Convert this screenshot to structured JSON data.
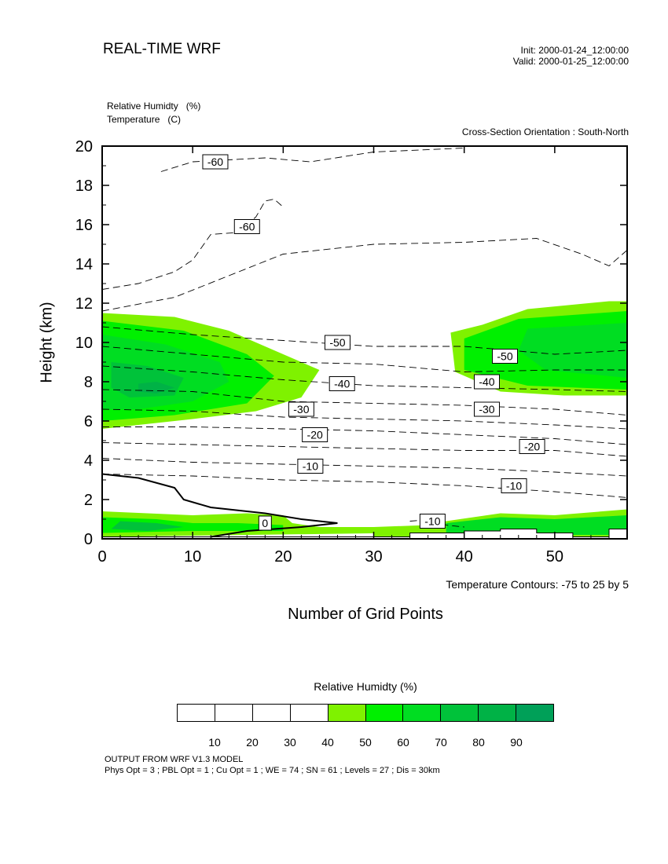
{
  "header": {
    "title": "REAL-TIME WRF",
    "init": "Init: 2000-01-24_12:00:00",
    "valid": "Valid: 2000-01-25_12:00:00"
  },
  "fields": {
    "relative_humidity": "Relative Humidty   (%)",
    "temperature": "Temperature   (C)"
  },
  "orientation": "Cross-Section Orientation : South-North",
  "contour_note": "Temperature Contours: -75 to 25 by 5",
  "colorbar": {
    "title": "Relative Humidty  (%)",
    "labels": [
      "10",
      "20",
      "30",
      "40",
      "50",
      "60",
      "70",
      "80",
      "90"
    ],
    "colors": [
      "#ffffff",
      "#ffffff",
      "#ffffff",
      "#ffffff",
      "#7ff200",
      "#00f000",
      "#00dd22",
      "#00c23a",
      "#00b246",
      "#00a058"
    ]
  },
  "footer": {
    "line1": "OUTPUT FROM WRF V1.3 MODEL",
    "line2": "Phys Opt = 3 ; PBL Opt = 1 ; Cu Opt = 1 ; WE = 74 ; SN = 61 ; Levels = 27 ; Dis = 30km"
  },
  "chart_data": {
    "type": "heatmap",
    "xlabel": "Number of Grid Points",
    "ylabel": "Height (km)",
    "xlim": [
      0,
      58
    ],
    "ylim": [
      0,
      20
    ],
    "xticks": [
      0,
      10,
      20,
      30,
      40,
      50
    ],
    "yticks": [
      0,
      2,
      4,
      6,
      8,
      10,
      12,
      14,
      16,
      18,
      20
    ],
    "shaded_field": "Relative Humidity (%)",
    "shading_levels": [
      10,
      20,
      30,
      40,
      50,
      60,
      70,
      80,
      90
    ],
    "rh_regions": [
      {
        "level": 40,
        "points": [
          [
            0,
            11.5
          ],
          [
            8,
            11.3
          ],
          [
            14,
            10.6
          ],
          [
            19,
            9.6
          ],
          [
            24,
            8.6
          ],
          [
            22,
            7.2
          ],
          [
            17,
            6.5
          ],
          [
            10,
            6.1
          ],
          [
            0,
            5.6
          ]
        ]
      },
      {
        "level": 50,
        "points": [
          [
            0,
            11.1
          ],
          [
            9,
            10.6
          ],
          [
            16,
            9.4
          ],
          [
            19,
            8.3
          ],
          [
            16,
            6.9
          ],
          [
            8,
            6.3
          ],
          [
            0,
            6.0
          ]
        ]
      },
      {
        "level": 60,
        "points": [
          [
            0,
            10.4
          ],
          [
            7,
            9.9
          ],
          [
            13,
            9.0
          ],
          [
            14,
            8.0
          ],
          [
            10,
            7.0
          ],
          [
            4,
            6.6
          ],
          [
            0,
            6.6
          ]
        ]
      },
      {
        "level": 70,
        "points": [
          [
            1,
            9.0
          ],
          [
            5,
            8.8
          ],
          [
            9,
            8.2
          ],
          [
            8,
            7.3
          ],
          [
            3,
            7.2
          ],
          [
            1,
            7.7
          ]
        ]
      },
      {
        "level": 80,
        "points": [
          [
            4,
            7.9
          ],
          [
            6,
            8.0
          ],
          [
            8,
            7.7
          ],
          [
            6,
            7.4
          ],
          [
            4,
            7.5
          ]
        ]
      },
      {
        "level": 40,
        "points": [
          [
            38.5,
            10.5
          ],
          [
            42,
            10.9
          ],
          [
            47,
            11.7
          ],
          [
            56,
            12.1
          ],
          [
            58,
            12.1
          ],
          [
            58,
            7.3
          ],
          [
            51,
            7.3
          ],
          [
            44,
            7.5
          ],
          [
            39,
            8.5
          ]
        ]
      },
      {
        "level": 50,
        "points": [
          [
            40,
            10.2
          ],
          [
            46,
            11.2
          ],
          [
            58,
            11.6
          ],
          [
            58,
            7.6
          ],
          [
            47,
            7.8
          ],
          [
            40,
            8.6
          ]
        ]
      },
      {
        "level": 60,
        "points": [
          [
            47,
            10.7
          ],
          [
            58,
            11.0
          ],
          [
            58,
            8.2
          ],
          [
            49,
            8.6
          ],
          [
            46,
            9.6
          ]
        ]
      },
      {
        "level": 40,
        "points": [
          [
            0,
            1.4
          ],
          [
            10,
            1.2
          ],
          [
            16,
            1.3
          ],
          [
            20,
            1.2
          ],
          [
            21,
            0.8
          ],
          [
            24,
            0.6
          ],
          [
            30,
            0.6
          ],
          [
            33,
            0.5
          ],
          [
            33,
            0.3
          ],
          [
            0,
            0.1
          ]
        ]
      },
      {
        "level": 50,
        "points": [
          [
            0,
            1.1
          ],
          [
            6,
            1.0
          ],
          [
            10,
            0.8
          ],
          [
            15,
            0.8
          ],
          [
            20,
            0.7
          ],
          [
            20,
            0.4
          ],
          [
            10,
            0.4
          ],
          [
            0,
            0.3
          ]
        ]
      },
      {
        "level": 70,
        "points": [
          [
            2,
            0.9
          ],
          [
            6,
            0.8
          ],
          [
            9,
            0.6
          ],
          [
            5,
            0.4
          ],
          [
            1,
            0.5
          ]
        ]
      },
      {
        "level": 40,
        "points": [
          [
            30,
            0.6
          ],
          [
            36,
            0.7
          ],
          [
            38,
            0.9
          ],
          [
            44,
            1.3
          ],
          [
            50,
            1.2
          ],
          [
            58,
            1.5
          ],
          [
            58,
            0.1
          ],
          [
            30,
            0.1
          ]
        ]
      },
      {
        "level": 60,
        "points": [
          [
            38,
            0.8
          ],
          [
            44,
            1.1
          ],
          [
            50,
            1.0
          ],
          [
            58,
            1.2
          ],
          [
            58,
            0.2
          ],
          [
            38,
            0.2
          ]
        ]
      }
    ],
    "temperature_contours": [
      {
        "value": -60,
        "points": [
          [
            6.5,
            18.7
          ],
          [
            10,
            19.2
          ],
          [
            18,
            19.4
          ],
          [
            23,
            19.2
          ],
          [
            30,
            19.7
          ],
          [
            40,
            19.9
          ]
        ]
      },
      {
        "value": -60,
        "points": [
          [
            0,
            12.7
          ],
          [
            4,
            13.0
          ],
          [
            8,
            13.6
          ],
          [
            10,
            14.2
          ],
          [
            12,
            15.5
          ],
          [
            15,
            15.6
          ],
          [
            17,
            16.4
          ],
          [
            18,
            17.2
          ],
          [
            19,
            17.3
          ],
          [
            20,
            16.9
          ]
        ]
      },
      {
        "value": -55,
        "points": [
          [
            0,
            11.6
          ],
          [
            8,
            12.3
          ],
          [
            14,
            13.4
          ],
          [
            20,
            14.5
          ],
          [
            30,
            15.0
          ],
          [
            40,
            15.1
          ],
          [
            48,
            15.3
          ],
          [
            53,
            14.5
          ],
          [
            56,
            13.9
          ],
          [
            58,
            14.7
          ]
        ]
      },
      {
        "value": -50,
        "points": [
          [
            0,
            10.8
          ],
          [
            10,
            10.4
          ],
          [
            20,
            10.1
          ],
          [
            30,
            9.8
          ],
          [
            40,
            9.8
          ],
          [
            45,
            9.6
          ],
          [
            50,
            9.4
          ],
          [
            58,
            9.6
          ]
        ]
      },
      {
        "value": -45,
        "points": [
          [
            0,
            9.8
          ],
          [
            10,
            9.4
          ],
          [
            20,
            9.0
          ],
          [
            30,
            8.9
          ],
          [
            40,
            8.5
          ],
          [
            50,
            8.6
          ],
          [
            58,
            8.6
          ]
        ]
      },
      {
        "value": -40,
        "points": [
          [
            0,
            8.8
          ],
          [
            10,
            8.5
          ],
          [
            20,
            8.1
          ],
          [
            30,
            7.8
          ],
          [
            40,
            7.7
          ],
          [
            50,
            7.6
          ],
          [
            58,
            7.5
          ]
        ]
      },
      {
        "value": -35,
        "points": [
          [
            0,
            7.6
          ],
          [
            10,
            7.5
          ],
          [
            20,
            7.0
          ],
          [
            30,
            6.9
          ],
          [
            40,
            6.8
          ],
          [
            50,
            6.6
          ],
          [
            58,
            6.3
          ]
        ]
      },
      {
        "value": -30,
        "points": [
          [
            0,
            6.6
          ],
          [
            10,
            6.5
          ],
          [
            20,
            6.2
          ],
          [
            30,
            6.1
          ],
          [
            40,
            6.0
          ],
          [
            50,
            5.8
          ],
          [
            58,
            5.6
          ]
        ]
      },
      {
        "value": -25,
        "points": [
          [
            0,
            5.7
          ],
          [
            10,
            5.7
          ],
          [
            20,
            5.6
          ],
          [
            30,
            5.5
          ],
          [
            40,
            5.3
          ],
          [
            50,
            5.1
          ],
          [
            58,
            4.8
          ]
        ]
      },
      {
        "value": -20,
        "points": [
          [
            0,
            4.9
          ],
          [
            10,
            4.8
          ],
          [
            20,
            4.7
          ],
          [
            30,
            4.6
          ],
          [
            40,
            4.5
          ],
          [
            50,
            4.5
          ],
          [
            58,
            4.2
          ]
        ]
      },
      {
        "value": -15,
        "points": [
          [
            0,
            4.1
          ],
          [
            10,
            3.9
          ],
          [
            20,
            3.8
          ],
          [
            30,
            3.7
          ],
          [
            40,
            3.6
          ],
          [
            50,
            3.4
          ],
          [
            58,
            3.2
          ]
        ]
      },
      {
        "value": -10,
        "points": [
          [
            0,
            3.3
          ],
          [
            10,
            3.2
          ],
          [
            20,
            3.0
          ],
          [
            30,
            2.9
          ],
          [
            40,
            2.7
          ],
          [
            50,
            2.4
          ],
          [
            58,
            2.1
          ]
        ]
      },
      {
        "value": -10,
        "points": [
          [
            34,
            0.9
          ],
          [
            37,
            1.0
          ],
          [
            38,
            0.7
          ],
          [
            40,
            0.6
          ]
        ]
      },
      {
        "value": 0,
        "points": [
          [
            0,
            3.3
          ],
          [
            4,
            3.1
          ],
          [
            8,
            2.6
          ],
          [
            9,
            2.0
          ],
          [
            12,
            1.6
          ],
          [
            18,
            1.3
          ],
          [
            22,
            1.0
          ],
          [
            26,
            0.8
          ],
          [
            22,
            0.6
          ],
          [
            16,
            0.4
          ],
          [
            12,
            0.1
          ]
        ]
      }
    ],
    "contour_labels": [
      {
        "text": "-60",
        "x": 12.5,
        "y": 19.2
      },
      {
        "text": "-60",
        "x": 16,
        "y": 15.9
      },
      {
        "text": "-50",
        "x": 26,
        "y": 10.0
      },
      {
        "text": "-50",
        "x": 44.5,
        "y": 9.3
      },
      {
        "text": "-40",
        "x": 26.5,
        "y": 7.9
      },
      {
        "text": "-40",
        "x": 42.5,
        "y": 8.0
      },
      {
        "text": "-30",
        "x": 22,
        "y": 6.6
      },
      {
        "text": "-30",
        "x": 42.5,
        "y": 6.6
      },
      {
        "text": "-20",
        "x": 23.5,
        "y": 5.3
      },
      {
        "text": "-20",
        "x": 47.5,
        "y": 4.7
      },
      {
        "text": "-10",
        "x": 23,
        "y": 3.7
      },
      {
        "text": "-10",
        "x": 45.5,
        "y": 2.7
      },
      {
        "text": "-10",
        "x": 36.5,
        "y": 0.9
      },
      {
        "text": "0",
        "x": 18,
        "y": 0.8
      }
    ],
    "terrain": [
      [
        0,
        0
      ],
      [
        58,
        0
      ],
      [
        58,
        0.5
      ],
      [
        56,
        0.5
      ],
      [
        56,
        0.1
      ],
      [
        52,
        0.1
      ],
      [
        52,
        0.3
      ],
      [
        48,
        0.3
      ],
      [
        48,
        0.5
      ],
      [
        44,
        0.5
      ],
      [
        44,
        0.4
      ],
      [
        40,
        0.4
      ],
      [
        40,
        0.3
      ],
      [
        34,
        0.3
      ],
      [
        34,
        0.1
      ],
      [
        0,
        0.1
      ]
    ]
  }
}
